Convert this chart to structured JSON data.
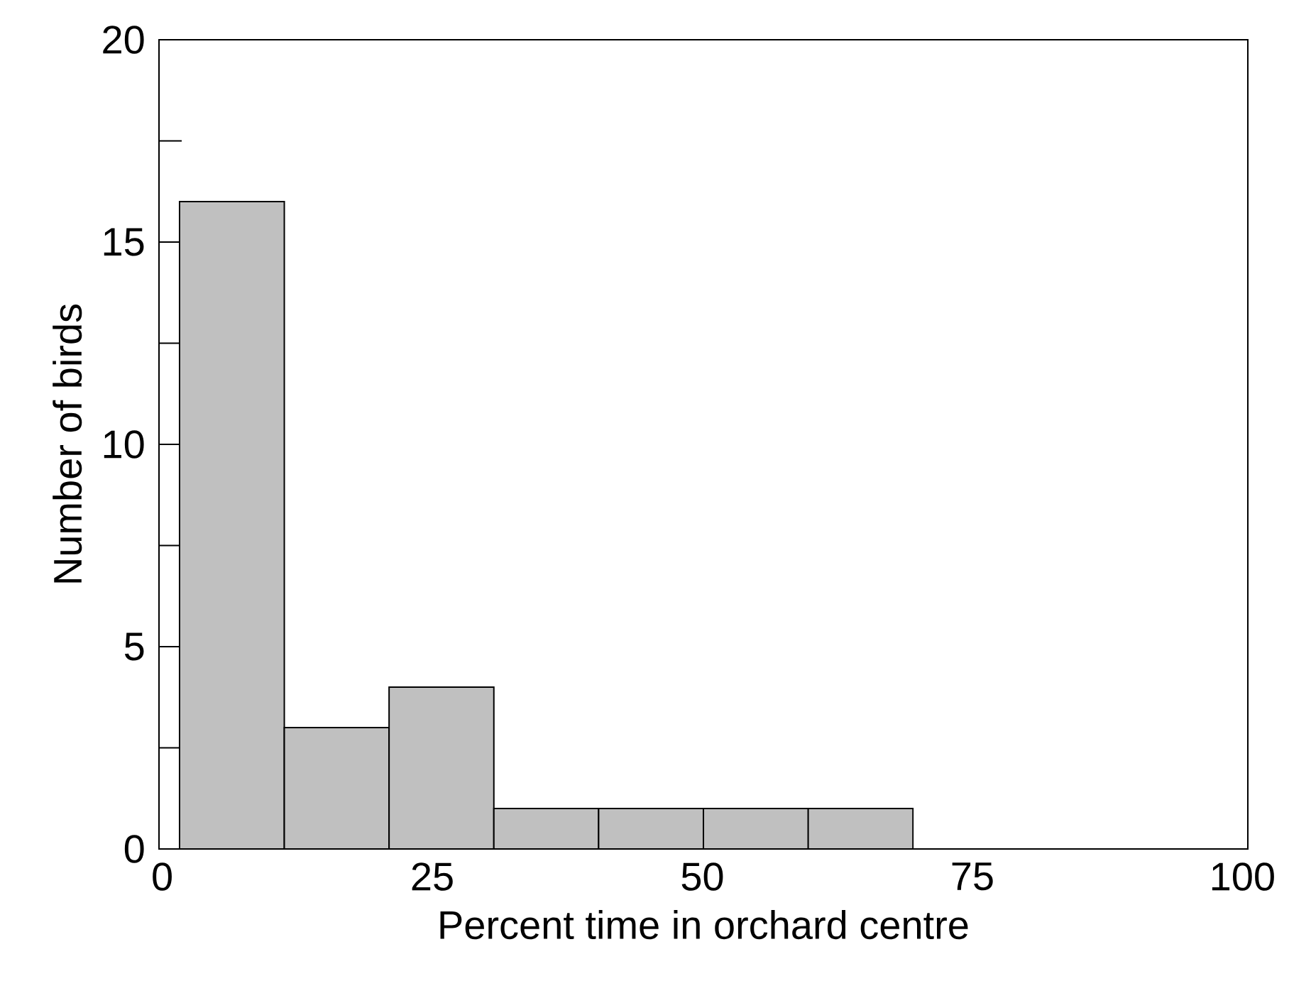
{
  "chart_data": {
    "type": "histogram",
    "xlabel": "Percent time in orchard centre",
    "ylabel": "Number of birds",
    "bins": [
      1.6,
      11.3,
      21.0,
      30.7,
      40.4,
      50.1,
      59.8,
      69.5
    ],
    "values": [
      16,
      3,
      4,
      1,
      1,
      1,
      1
    ],
    "color": "#c0c0c0",
    "xlim": [
      -0.3,
      100.5
    ],
    "ylim": [
      0,
      20
    ],
    "xticks": [
      0,
      25,
      50,
      75,
      100
    ],
    "yticks": [
      0,
      {
        "value": 2.5,
        "label": null
      },
      5,
      {
        "value": 7.5,
        "label": null
      },
      10,
      {
        "value": 12.5,
        "label": null
      },
      15,
      {
        "value": 17.5,
        "label": null
      },
      20
    ]
  }
}
